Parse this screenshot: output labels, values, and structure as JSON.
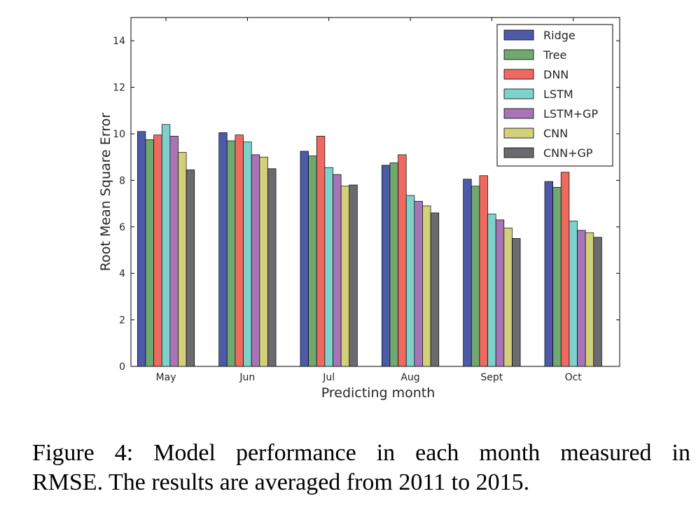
{
  "chart_data": {
    "type": "bar",
    "title": "",
    "xlabel": "Predicting month",
    "ylabel": "Root Mean Square Error",
    "ylim": [
      0,
      15
    ],
    "yticks": [
      0,
      2,
      4,
      6,
      8,
      10,
      12,
      14
    ],
    "grid": false,
    "legend_position": "top-right",
    "categories": [
      "May",
      "Jun",
      "Jul",
      "Aug",
      "Sept",
      "Oct"
    ],
    "series": [
      {
        "name": "Ridge",
        "color": "#4c5aa8",
        "values": [
          10.1,
          10.05,
          9.25,
          8.65,
          8.05,
          7.95
        ]
      },
      {
        "name": "Tree",
        "color": "#70a870",
        "values": [
          9.75,
          9.7,
          9.05,
          8.75,
          7.75,
          7.7
        ]
      },
      {
        "name": "DNN",
        "color": "#ee6a60",
        "values": [
          9.95,
          9.95,
          9.9,
          9.1,
          8.2,
          8.35
        ]
      },
      {
        "name": "LSTM",
        "color": "#7dd2cc",
        "values": [
          10.4,
          9.65,
          8.55,
          7.35,
          6.55,
          6.25
        ]
      },
      {
        "name": "LSTM+GP",
        "color": "#a874b8",
        "values": [
          9.9,
          9.1,
          8.25,
          7.1,
          6.3,
          5.85
        ]
      },
      {
        "name": "CNN",
        "color": "#d2d07a",
        "values": [
          9.2,
          9.0,
          7.75,
          6.9,
          5.95,
          5.75
        ]
      },
      {
        "name": "CNN+GP",
        "color": "#6b6b6f",
        "values": [
          8.45,
          8.5,
          7.8,
          6.6,
          5.5,
          5.55
        ]
      }
    ]
  },
  "caption": {
    "line1": "Figure 4: Model performance in each month measured in",
    "line2": "RMSE. The results are averaged from 2011 to 2015."
  }
}
